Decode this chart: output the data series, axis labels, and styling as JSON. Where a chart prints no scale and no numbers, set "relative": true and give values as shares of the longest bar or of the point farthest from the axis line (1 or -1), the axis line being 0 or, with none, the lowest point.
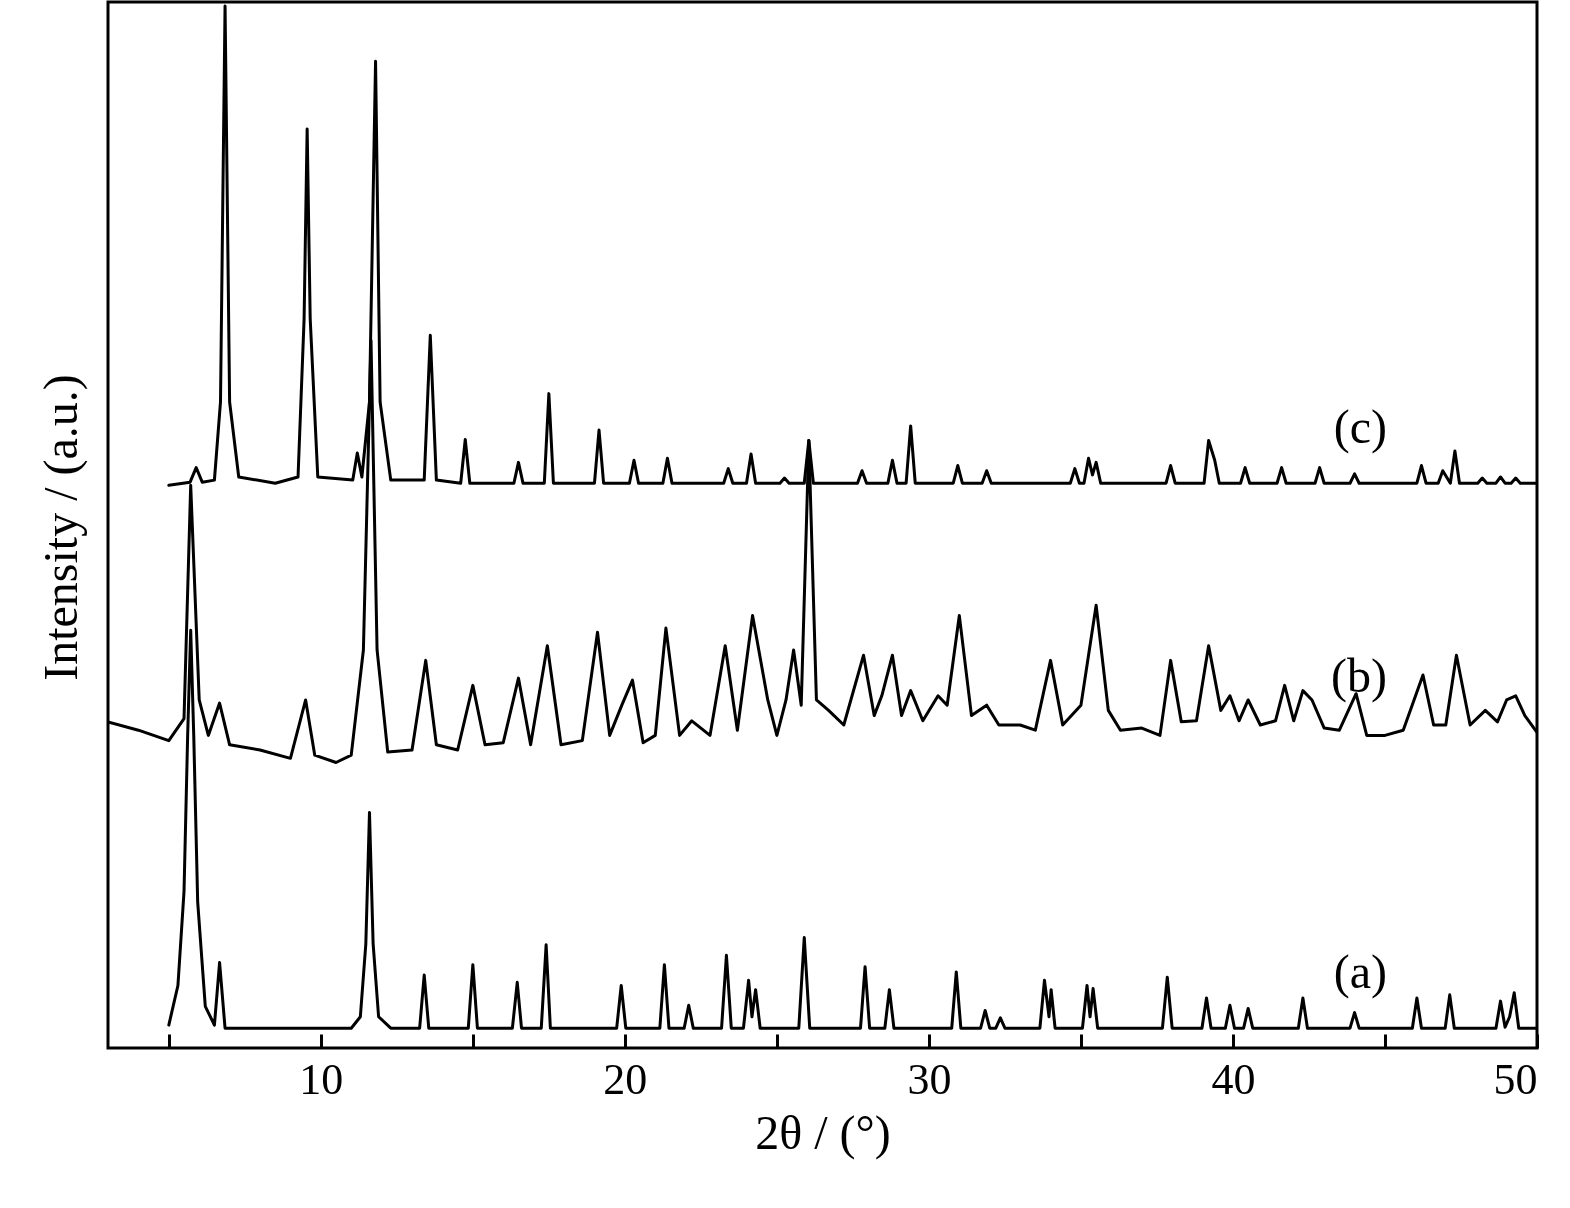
{
  "chart_data": {
    "type": "line",
    "relative": true,
    "xlabel": "2θ / (°)",
    "ylabel": "Intensity / (a.u.)",
    "xlim": [
      3,
      50
    ],
    "xticks": [
      {
        "value": 5,
        "label": null
      },
      10,
      {
        "value": 15,
        "label": null
      },
      20,
      {
        "value": 25,
        "label": null
      },
      30,
      {
        "value": 35,
        "label": null
      },
      40,
      {
        "value": 45,
        "label": null
      },
      50
    ],
    "marker": "none",
    "line_style": "solid",
    "series": [
      {
        "name": "(a)",
        "color": "#000000",
        "x": [
          5.0,
          5.3,
          5.5,
          5.62,
          5.72,
          5.82,
          5.95,
          6.2,
          6.5,
          6.67,
          6.85,
          11.0,
          11.3,
          11.48,
          11.6,
          11.72,
          11.9,
          12.3,
          13.25,
          13.4,
          13.55,
          14.85,
          15.0,
          15.15,
          16.3,
          16.46,
          16.6,
          17.25,
          17.41,
          17.55,
          19.73,
          19.88,
          20.03,
          21.15,
          21.3,
          21.45,
          21.95,
          22.1,
          22.25,
          23.18,
          23.34,
          23.5,
          23.9,
          24.07,
          24.18,
          24.3,
          24.45,
          25.72,
          25.9,
          26.08,
          27.75,
          27.9,
          28.05,
          28.55,
          28.7,
          28.85,
          30.75,
          30.9,
          31.05,
          31.7,
          31.85,
          32.0,
          32.2,
          32.35,
          32.5,
          33.65,
          33.8,
          33.95,
          34.02,
          34.15,
          35.05,
          35.2,
          35.3,
          35.4,
          35.55,
          37.68,
          37.84,
          38.0,
          38.98,
          39.13,
          39.28,
          39.75,
          39.9,
          40.05,
          40.35,
          40.5,
          40.65,
          42.15,
          42.3,
          42.45,
          43.85,
          44.0,
          44.15,
          45.9,
          46.05,
          46.2,
          46.98,
          47.13,
          47.28,
          48.65,
          48.8,
          48.95,
          49.1,
          49.25,
          49.4,
          50.0
        ],
        "values": [
          0.022,
          0.06,
          0.15,
          0.3,
          0.401,
          0.3,
          0.14,
          0.04,
          0.022,
          0.082,
          0.019,
          0.019,
          0.03,
          0.1,
          0.226,
          0.1,
          0.03,
          0.019,
          0.019,
          0.07,
          0.019,
          0.019,
          0.08,
          0.019,
          0.019,
          0.063,
          0.019,
          0.019,
          0.099,
          0.019,
          0.019,
          0.06,
          0.019,
          0.019,
          0.08,
          0.019,
          0.019,
          0.041,
          0.019,
          0.019,
          0.089,
          0.019,
          0.019,
          0.065,
          0.03,
          0.056,
          0.019,
          0.019,
          0.106,
          0.019,
          0.019,
          0.078,
          0.019,
          0.019,
          0.056,
          0.019,
          0.019,
          0.073,
          0.019,
          0.019,
          0.036,
          0.019,
          0.019,
          0.029,
          0.019,
          0.019,
          0.065,
          0.03,
          0.056,
          0.019,
          0.019,
          0.06,
          0.03,
          0.057,
          0.019,
          0.019,
          0.068,
          0.019,
          0.019,
          0.048,
          0.019,
          0.019,
          0.041,
          0.019,
          0.019,
          0.038,
          0.019,
          0.019,
          0.048,
          0.019,
          0.019,
          0.034,
          0.019,
          0.019,
          0.048,
          0.019,
          0.019,
          0.051,
          0.019,
          0.019,
          0.045,
          0.02,
          0.03,
          0.053,
          0.019,
          0.019
        ]
      },
      {
        "name": "(b)",
        "color": "#000000",
        "x": [
          3.0,
          4.0,
          5.0,
          5.5,
          5.72,
          6.0,
          6.3,
          6.67,
          7.0,
          8.0,
          9.0,
          9.5,
          9.8,
          10.5,
          11.0,
          11.4,
          11.65,
          11.85,
          12.2,
          13.0,
          13.45,
          13.8,
          14.5,
          15.0,
          15.4,
          16.0,
          16.5,
          16.9,
          17.45,
          17.9,
          18.6,
          19.1,
          19.5,
          19.9,
          20.25,
          20.6,
          21.0,
          21.35,
          21.8,
          22.2,
          22.8,
          23.3,
          23.7,
          24.2,
          24.7,
          25.0,
          25.3,
          25.55,
          25.8,
          26.05,
          26.3,
          26.7,
          27.2,
          27.85,
          28.2,
          28.45,
          28.8,
          29.1,
          29.4,
          29.8,
          30.3,
          30.6,
          31.0,
          31.4,
          31.9,
          32.3,
          33.0,
          33.5,
          34.0,
          34.4,
          35.0,
          35.5,
          35.9,
          36.3,
          37.0,
          37.6,
          37.95,
          38.3,
          38.8,
          39.2,
          39.6,
          39.9,
          40.2,
          40.5,
          40.9,
          41.4,
          41.7,
          42.0,
          42.3,
          42.6,
          43.0,
          43.5,
          44.05,
          44.4,
          45.0,
          45.6,
          46.25,
          46.6,
          47.0,
          47.35,
          47.8,
          48.3,
          48.7,
          49.0,
          49.3,
          49.6,
          50.0
        ],
        "values": [
          0.313,
          0.305,
          0.295,
          0.316,
          0.54,
          0.334,
          0.3,
          0.331,
          0.291,
          0.286,
          0.278,
          0.334,
          0.281,
          0.274,
          0.281,
          0.382,
          0.679,
          0.382,
          0.284,
          0.286,
          0.372,
          0.291,
          0.286,
          0.348,
          0.291,
          0.293,
          0.355,
          0.291,
          0.386,
          0.291,
          0.295,
          0.399,
          0.3,
          0.329,
          0.353,
          0.293,
          0.3,
          0.403,
          0.3,
          0.314,
          0.3,
          0.386,
          0.305,
          0.415,
          0.334,
          0.3,
          0.334,
          0.382,
          0.329,
          0.583,
          0.334,
          0.324,
          0.31,
          0.377,
          0.319,
          0.338,
          0.377,
          0.319,
          0.343,
          0.314,
          0.338,
          0.329,
          0.415,
          0.319,
          0.329,
          0.31,
          0.31,
          0.305,
          0.372,
          0.31,
          0.329,
          0.425,
          0.324,
          0.305,
          0.307,
          0.3,
          0.372,
          0.313,
          0.314,
          0.386,
          0.324,
          0.338,
          0.314,
          0.334,
          0.31,
          0.314,
          0.348,
          0.314,
          0.343,
          0.334,
          0.307,
          0.305,
          0.34,
          0.3,
          0.3,
          0.305,
          0.358,
          0.31,
          0.31,
          0.377,
          0.31,
          0.324,
          0.313,
          0.334,
          0.338,
          0.319,
          0.303
        ]
      },
      {
        "name": "(c)",
        "color": "#000000",
        "x": [
          5.0,
          5.7,
          5.9,
          6.1,
          6.5,
          6.7,
          6.85,
          7.0,
          7.3,
          8.5,
          9.25,
          9.45,
          9.55,
          9.65,
          9.9,
          11.05,
          11.2,
          11.35,
          11.6,
          11.8,
          11.95,
          12.3,
          13.4,
          13.6,
          13.8,
          14.6,
          14.75,
          14.9,
          16.35,
          16.5,
          16.65,
          17.35,
          17.5,
          17.65,
          19.0,
          19.15,
          19.3,
          20.15,
          20.3,
          20.45,
          21.25,
          21.4,
          21.55,
          23.25,
          23.4,
          23.55,
          24.0,
          24.15,
          24.3,
          25.1,
          25.25,
          25.4,
          25.9,
          26.05,
          26.2,
          27.65,
          27.8,
          27.95,
          28.65,
          28.8,
          28.95,
          29.25,
          29.4,
          29.55,
          30.8,
          30.95,
          31.1,
          31.75,
          31.9,
          32.05,
          34.65,
          34.8,
          34.95,
          35.1,
          35.25,
          35.38,
          35.5,
          35.65,
          37.8,
          37.95,
          38.1,
          39.05,
          39.2,
          39.4,
          39.55,
          40.25,
          40.4,
          40.55,
          41.45,
          41.6,
          41.75,
          42.7,
          42.85,
          43.0,
          43.85,
          44.0,
          44.15,
          46.05,
          46.2,
          46.35,
          46.75,
          46.9,
          47.15,
          47.3,
          47.45,
          48.05,
          48.2,
          48.35,
          48.65,
          48.8,
          48.95,
          49.15,
          49.3,
          49.45,
          50.0
        ],
        "values": [
          0.54,
          0.543,
          0.557,
          0.543,
          0.545,
          0.62,
          1.0,
          0.62,
          0.548,
          0.542,
          0.548,
          0.7,
          0.882,
          0.7,
          0.548,
          0.545,
          0.571,
          0.548,
          0.62,
          0.947,
          0.62,
          0.545,
          0.545,
          0.684,
          0.545,
          0.542,
          0.584,
          0.542,
          0.542,
          0.562,
          0.542,
          0.542,
          0.628,
          0.542,
          0.542,
          0.593,
          0.542,
          0.542,
          0.564,
          0.542,
          0.542,
          0.566,
          0.542,
          0.542,
          0.556,
          0.542,
          0.542,
          0.57,
          0.542,
          0.542,
          0.547,
          0.542,
          0.542,
          0.583,
          0.542,
          0.542,
          0.554,
          0.542,
          0.542,
          0.564,
          0.542,
          0.542,
          0.597,
          0.542,
          0.542,
          0.559,
          0.542,
          0.542,
          0.554,
          0.542,
          0.542,
          0.556,
          0.542,
          0.542,
          0.566,
          0.55,
          0.562,
          0.542,
          0.542,
          0.559,
          0.542,
          0.542,
          0.583,
          0.564,
          0.542,
          0.542,
          0.557,
          0.542,
          0.542,
          0.557,
          0.542,
          0.542,
          0.557,
          0.542,
          0.542,
          0.551,
          0.542,
          0.542,
          0.559,
          0.542,
          0.542,
          0.554,
          0.542,
          0.573,
          0.542,
          0.542,
          0.547,
          0.542,
          0.542,
          0.548,
          0.542,
          0.542,
          0.547,
          0.542,
          0.542
        ]
      }
    ]
  }
}
